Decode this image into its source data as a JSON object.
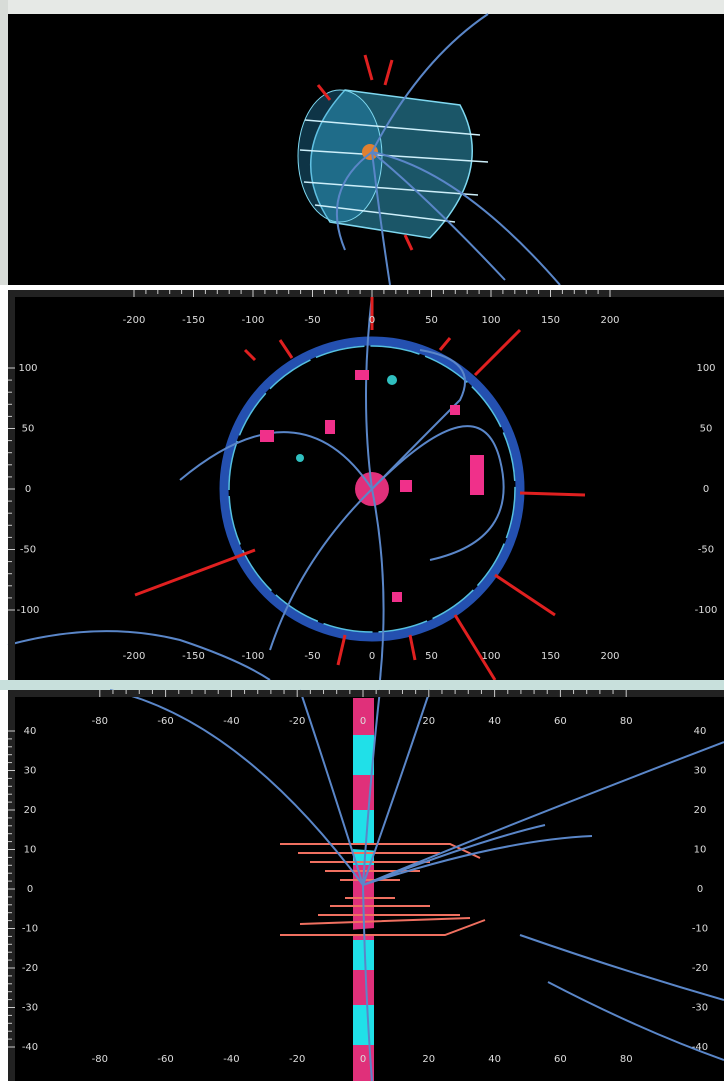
{
  "panel_2": {
    "x_ticks": [
      -200,
      -150,
      -100,
      -50,
      0,
      50,
      100,
      150,
      200
    ],
    "y_ticks": [
      100,
      50,
      0,
      -50,
      -100
    ]
  },
  "panel_3": {
    "x_ticks": [
      -80,
      -60,
      -40,
      -20,
      0,
      20,
      40,
      60,
      80
    ],
    "y_ticks": [
      40,
      30,
      20,
      10,
      0,
      -10,
      -20,
      -30,
      -40
    ]
  }
}
